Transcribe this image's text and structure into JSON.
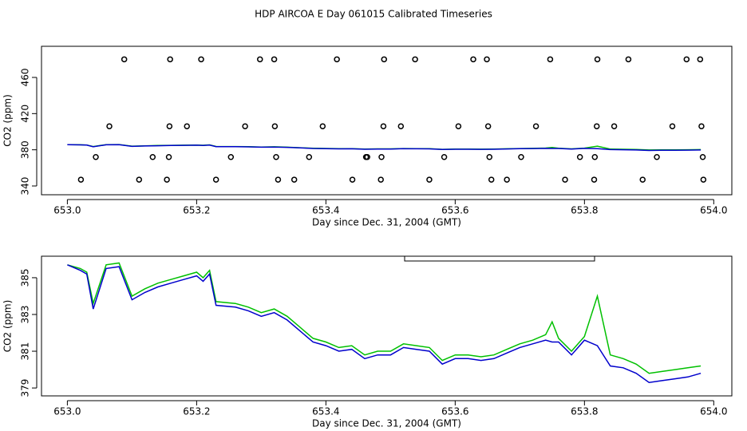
{
  "title": "HDP AIRCOA E  Day 061015  Calibrated Timeseries",
  "chart_data": [
    {
      "type": "line",
      "xlabel": "Day since Dec. 31, 2004 (GMT)",
      "ylabel": "CO2 (ppm)",
      "xlim": [
        652.96,
        654.028
      ],
      "ylim": [
        330.3,
        494.4
      ],
      "xticks": [
        {
          "value": 653,
          "label": "653.0"
        },
        653.2,
        653.4,
        653.6,
        653.8,
        {
          "value": 654,
          "label": "654.0"
        }
      ],
      "yticks": [
        340,
        380,
        420,
        460
      ],
      "markers": {
        "x": [
          653.021,
          653.044,
          653.065,
          653.088,
          653.111,
          653.132,
          653.154,
          653.157,
          653.158,
          653.159,
          653.185,
          653.207,
          653.23,
          653.253,
          653.275,
          653.298,
          653.32,
          653.321,
          653.323,
          653.326,
          653.351,
          653.374,
          653.395,
          653.417,
          653.441,
          653.462,
          653.464,
          653.485,
          653.486,
          653.489,
          653.49,
          653.516,
          653.538,
          653.56,
          653.583,
          653.605,
          653.628,
          653.649,
          653.651,
          653.653,
          653.656,
          653.68,
          653.702,
          653.725,
          653.747,
          653.77,
          653.793,
          653.815,
          653.816,
          653.819,
          653.82,
          653.846,
          653.868,
          653.89,
          653.912,
          653.936,
          653.958,
          653.979,
          653.981,
          653.983,
          653.984
        ],
        "y": [
          347,
          372,
          406,
          480,
          347,
          372,
          347,
          372,
          406,
          480,
          406,
          480,
          347,
          372,
          406,
          480,
          480,
          406,
          372,
          347,
          347,
          372,
          406,
          480,
          347,
          372,
          372,
          347,
          372,
          406,
          480,
          406,
          480,
          347,
          372,
          406,
          480,
          480,
          406,
          372,
          347,
          347,
          372,
          406,
          480,
          347,
          372,
          347,
          372,
          406,
          480,
          406,
          480,
          347,
          372,
          406,
          480,
          480,
          406,
          372,
          347
        ]
      },
      "x": [
        653.0,
        653.02,
        653.03,
        653.04,
        653.06,
        653.08,
        653.1,
        653.12,
        653.14,
        653.16,
        653.18,
        653.2,
        653.21,
        653.22,
        653.23,
        653.26,
        653.28,
        653.3,
        653.32,
        653.34,
        653.36,
        653.38,
        653.4,
        653.42,
        653.44,
        653.46,
        653.48,
        653.5,
        653.52,
        653.54,
        653.56,
        653.58,
        653.6,
        653.62,
        653.64,
        653.66,
        653.68,
        653.7,
        653.72,
        653.74,
        653.75,
        653.76,
        653.78,
        653.8,
        653.82,
        653.84,
        653.86,
        653.88,
        653.9,
        653.92,
        653.94,
        653.96,
        653.98
      ],
      "series": [
        {
          "color": "#00c000",
          "values": [
            385.7,
            385.5,
            385.3,
            383.6,
            385.7,
            385.8,
            384.0,
            384.4,
            384.7,
            384.9,
            385.1,
            385.3,
            385.0,
            385.4,
            383.7,
            383.6,
            383.4,
            383.1,
            383.3,
            382.9,
            382.3,
            381.7,
            381.5,
            381.2,
            381.3,
            380.8,
            381.0,
            381.0,
            381.4,
            381.3,
            381.2,
            380.5,
            380.8,
            380.8,
            380.7,
            380.8,
            381.1,
            381.4,
            381.6,
            381.9,
            382.6,
            381.7,
            381.0,
            381.8,
            384.0,
            380.8,
            380.6,
            380.3,
            379.8,
            379.9,
            380.0,
            380.1,
            380.2
          ]
        },
        {
          "color": "#0000cc",
          "values": [
            385.7,
            385.4,
            385.2,
            383.3,
            385.5,
            385.6,
            383.8,
            384.2,
            384.5,
            384.7,
            384.9,
            385.1,
            384.8,
            385.2,
            383.5,
            383.4,
            383.2,
            382.9,
            383.1,
            382.7,
            382.1,
            381.5,
            381.3,
            381.0,
            381.1,
            380.6,
            380.8,
            380.8,
            381.2,
            381.1,
            381.0,
            380.3,
            380.6,
            380.6,
            380.5,
            380.6,
            380.9,
            381.2,
            381.4,
            381.6,
            381.5,
            381.5,
            380.8,
            381.6,
            381.3,
            380.2,
            380.1,
            379.8,
            379.3,
            379.4,
            379.5,
            379.6,
            379.8
          ]
        }
      ]
    },
    {
      "type": "line",
      "xlabel": "Day since Dec. 31, 2004 (GMT)",
      "ylabel": "CO2 (ppm)",
      "xlim": [
        652.96,
        654.028
      ],
      "ylim": [
        378.57,
        386.17
      ],
      "xticks": [
        {
          "value": 653,
          "label": "653.0"
        },
        653.2,
        653.4,
        653.6,
        653.8,
        {
          "value": 654,
          "label": "654.0"
        }
      ],
      "yticks": [
        379,
        381,
        383,
        385
      ],
      "x": [
        653.0,
        653.02,
        653.03,
        653.04,
        653.06,
        653.08,
        653.1,
        653.12,
        653.14,
        653.16,
        653.18,
        653.2,
        653.21,
        653.22,
        653.23,
        653.26,
        653.28,
        653.3,
        653.32,
        653.34,
        653.36,
        653.38,
        653.4,
        653.42,
        653.44,
        653.46,
        653.48,
        653.5,
        653.52,
        653.54,
        653.56,
        653.58,
        653.6,
        653.62,
        653.64,
        653.66,
        653.68,
        653.7,
        653.72,
        653.74,
        653.75,
        653.76,
        653.78,
        653.8,
        653.82,
        653.84,
        653.86,
        653.88,
        653.9,
        653.92,
        653.94,
        653.96,
        653.98
      ],
      "series": [
        {
          "color": "#00c000",
          "values": [
            385.7,
            385.5,
            385.3,
            383.6,
            385.7,
            385.8,
            384.0,
            384.4,
            384.7,
            384.9,
            385.1,
            385.3,
            385.0,
            385.4,
            383.7,
            383.6,
            383.4,
            383.1,
            383.3,
            382.9,
            382.3,
            381.7,
            381.5,
            381.2,
            381.3,
            380.8,
            381.0,
            381.0,
            381.4,
            381.3,
            381.2,
            380.5,
            380.8,
            380.8,
            380.7,
            380.8,
            381.1,
            381.4,
            381.6,
            381.9,
            382.6,
            381.7,
            381.0,
            381.8,
            384.0,
            380.8,
            380.6,
            380.3,
            379.8,
            379.9,
            380.0,
            380.1,
            380.2
          ]
        },
        {
          "color": "#0000cc",
          "values": [
            385.7,
            385.4,
            385.2,
            383.3,
            385.5,
            385.6,
            383.8,
            384.2,
            384.5,
            384.7,
            384.9,
            385.1,
            384.8,
            385.2,
            383.5,
            383.4,
            383.2,
            382.9,
            383.1,
            382.7,
            382.1,
            381.5,
            381.3,
            381.0,
            381.1,
            380.6,
            380.8,
            380.8,
            381.2,
            381.1,
            381.0,
            380.3,
            380.6,
            380.6,
            380.5,
            380.6,
            380.9,
            381.2,
            381.4,
            381.6,
            381.5,
            381.5,
            380.8,
            381.6,
            381.3,
            380.2,
            380.1,
            379.8,
            379.3,
            379.4,
            379.5,
            379.6,
            379.8
          ]
        }
      ]
    }
  ]
}
